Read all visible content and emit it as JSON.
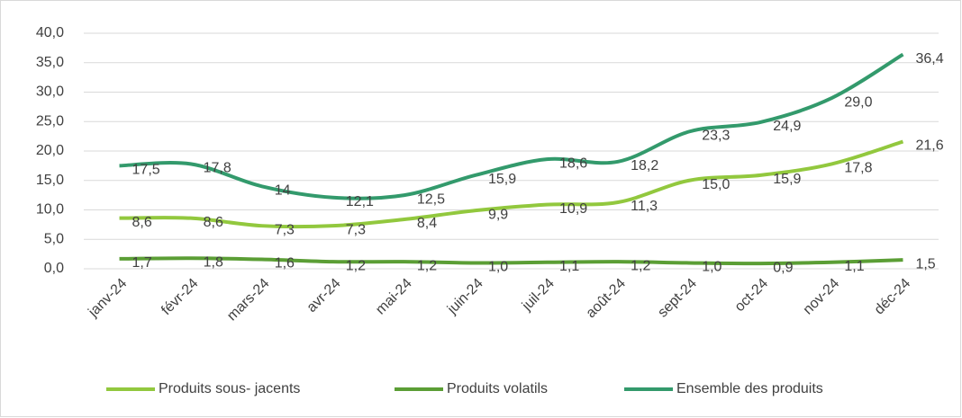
{
  "chart_data": {
    "type": "line",
    "categories": [
      "janv-24",
      "févr-24",
      "mars-24",
      "avr-24",
      "mai-24",
      "juin-24",
      "juil-24",
      "août-24",
      "sept-24",
      "oct-24",
      "nov-24",
      "déc-24"
    ],
    "series": [
      {
        "name": "Produits sous- jacents",
        "color": "#92c83e",
        "values": [
          8.6,
          8.6,
          7.3,
          7.3,
          8.4,
          9.9,
          10.9,
          11.3,
          15.0,
          15.9,
          17.8,
          21.6
        ],
        "value_labels": [
          "8,6",
          "8,6",
          "7,3",
          "7,3",
          "8,4",
          "9,9",
          "10,9",
          "11,3",
          "15,0",
          "15,9",
          "17,8",
          "21,6"
        ]
      },
      {
        "name": "Produits volatils",
        "color": "#5b9e35",
        "values": [
          1.7,
          1.8,
          1.6,
          1.2,
          1.2,
          1.0,
          1.1,
          1.2,
          1.0,
          0.9,
          1.1,
          1.5
        ],
        "value_labels": [
          "1,7",
          "1,8",
          "1,6",
          "1,2",
          "1,2",
          "1,0",
          "1,1",
          "1,2",
          "1,0",
          "0,9",
          "1,1",
          "1,5"
        ]
      },
      {
        "name": "Ensemble des produits",
        "color": "#339a6c",
        "values": [
          17.5,
          17.8,
          14,
          12.1,
          12.5,
          15.9,
          18.6,
          18.2,
          23.3,
          24.9,
          29.0,
          36.4
        ],
        "value_labels": [
          "17,5",
          "17,8",
          "14",
          "12,1",
          "12,5",
          "15,9",
          "18,6",
          "18,2",
          "23,3",
          "24,9",
          "29,0",
          "36,4"
        ]
      }
    ],
    "ylim": [
      0,
      40
    ],
    "yticks": [
      {
        "value": 0,
        "label": "0,0"
      },
      {
        "value": 5,
        "label": "5,0"
      },
      {
        "value": 10,
        "label": "10,0"
      },
      {
        "value": 15,
        "label": "15,0"
      },
      {
        "value": 20,
        "label": "20,0"
      },
      {
        "value": 25,
        "label": "25,0"
      },
      {
        "value": 30,
        "label": "30,0"
      },
      {
        "value": 35,
        "label": "35,0"
      },
      {
        "value": 40,
        "label": "40,0"
      }
    ],
    "grid": true,
    "legend": "bottom"
  }
}
